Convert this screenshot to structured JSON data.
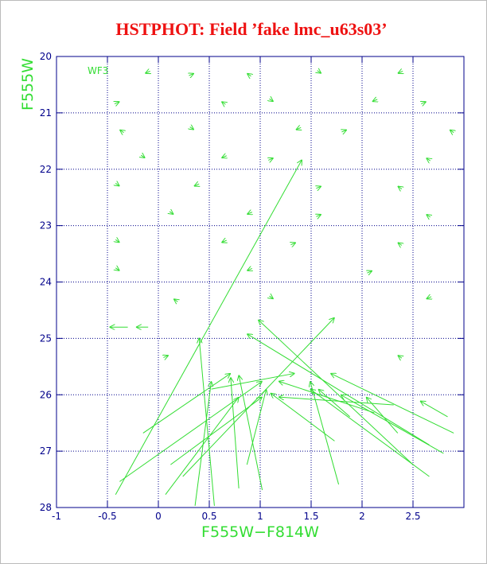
{
  "chart_data": {
    "type": "quiver",
    "title": "HSTPHOT: Field ’fake lmc_u63s03’",
    "x_label": "F555W−F814W",
    "y_label": "F555W",
    "annotation": "WF3",
    "color": "#33dd33",
    "grid": true,
    "y_inverted": true,
    "xlim": [
      -1,
      3
    ],
    "ylim": [
      28,
      20
    ],
    "xticks": [
      -1,
      -0.5,
      0,
      0.5,
      1,
      1.5,
      2,
      2.5
    ],
    "yticks": [
      20,
      21,
      22,
      23,
      24,
      25,
      26,
      27,
      28
    ],
    "grid_x": [
      -0.5,
      0,
      0.5,
      1,
      1.5,
      2,
      2.5
    ],
    "arrows": {
      "x": [
        -0.08,
        0.3,
        0.91,
        1.56,
        2.4,
        -0.43,
        0.66,
        1.09,
        2.15,
        2.58,
        -0.34,
        0.31,
        1.4,
        1.8,
        2.9,
        -0.17,
        0.67,
        1.08,
        2.67,
        -0.42,
        0.4,
        1.55,
        2.39,
        0.11,
        0.92,
        1.55,
        2.67,
        -0.42,
        0.67,
        1.3,
        2.39,
        -0.42,
        0.92,
        2.05,
        0.19,
        1.09,
        2.68,
        0.05,
        2.39,
        -0.3,
        -0.1,
        -0.42,
        -0.38,
        -0.15,
        0.36,
        0.79,
        0.07,
        1.02,
        0.55,
        1.77,
        2.66,
        2.9,
        2.66,
        2.5,
        2.84,
        2.35,
        2.8,
        0.24,
        0.12,
        0.87,
        1.88,
        2.12,
        2.31,
        0.52,
        1.73
      ],
      "y": [
        20.26,
        20.34,
        20.35,
        20.25,
        20.26,
        20.84,
        20.85,
        20.75,
        20.76,
        20.84,
        21.35,
        21.25,
        21.26,
        21.34,
        21.35,
        21.75,
        21.76,
        21.84,
        21.85,
        22.25,
        22.26,
        22.34,
        22.35,
        22.75,
        22.76,
        22.84,
        22.85,
        23.25,
        23.26,
        23.34,
        23.35,
        23.75,
        23.76,
        23.84,
        24.35,
        24.25,
        24.26,
        25.34,
        25.35,
        24.8,
        24.8,
        27.77,
        27.54,
        26.68,
        27.97,
        27.66,
        27.77,
        27.69,
        27.97,
        27.59,
        27.45,
        26.68,
        26.89,
        27.24,
        26.39,
        26.68,
        27.04,
        27.45,
        27.24,
        27.24,
        26.39,
        26.32,
        26.18,
        25.9,
        26.82
      ],
      "x_end": [
        -0.13,
        0.35,
        0.87,
        1.6,
        2.35,
        -0.38,
        0.62,
        1.13,
        2.1,
        2.63,
        -0.38,
        0.35,
        1.35,
        1.85,
        2.86,
        -0.13,
        0.62,
        1.13,
        2.63,
        -0.38,
        0.35,
        1.6,
        2.35,
        0.15,
        0.87,
        1.6,
        2.63,
        -0.38,
        0.62,
        1.35,
        2.35,
        -0.38,
        0.87,
        2.1,
        0.15,
        1.13,
        2.63,
        0.1,
        2.35,
        -0.48,
        -0.22,
        1.41,
        1.02,
        0.71,
        0.52,
        0.71,
        0.79,
        0.79,
        0.4,
        1.49,
        1.49,
        1.69,
        0.87,
        0.98,
        2.57,
        2.04,
        1.79,
        1.73,
        1.02,
        1.06,
        1.57,
        1.18,
        1.18,
        1.34,
        1.1
      ],
      "y_end": [
        20.3,
        20.3,
        20.3,
        20.3,
        20.3,
        20.8,
        20.8,
        20.8,
        20.8,
        20.8,
        21.3,
        21.3,
        21.3,
        21.3,
        21.3,
        21.8,
        21.8,
        21.8,
        21.8,
        22.3,
        22.3,
        22.3,
        22.3,
        22.8,
        22.8,
        22.8,
        22.8,
        23.3,
        23.3,
        23.3,
        23.3,
        23.8,
        23.8,
        23.8,
        24.3,
        24.3,
        24.3,
        25.3,
        25.3,
        24.8,
        24.8,
        21.83,
        25.76,
        25.62,
        25.76,
        25.69,
        26.04,
        25.65,
        24.99,
        25.76,
        25.9,
        25.62,
        24.92,
        24.67,
        26.11,
        26.04,
        26.0,
        24.63,
        26.04,
        25.9,
        25.9,
        25.76,
        26.04,
        25.62,
        25.97
      ]
    }
  }
}
